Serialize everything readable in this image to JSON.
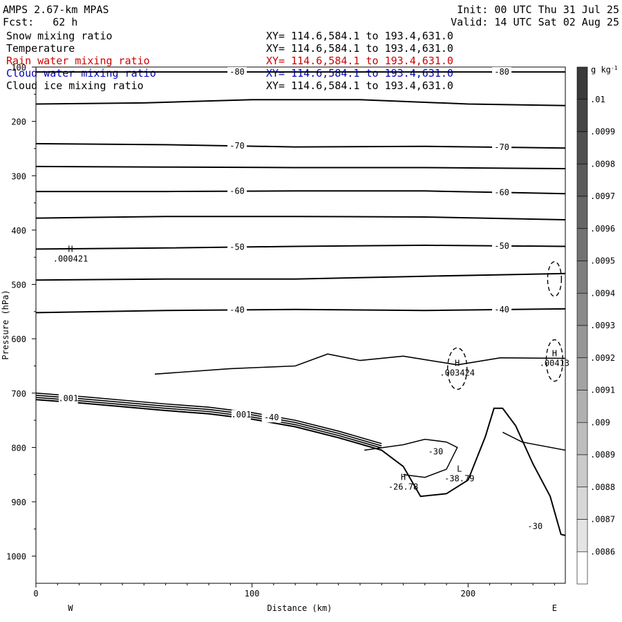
{
  "header": {
    "model": "AMPS 2.67-km MPAS",
    "fcst": "Fcst:   62 h",
    "init": "Init: 00 UTC Thu 31 Jul 25",
    "valid": "Valid: 14 UTC Sat 02 Aug 25"
  },
  "fields": [
    {
      "name": "Snow mixing ratio",
      "xy": "XY= 114.6,584.1 to 193.4,631.0",
      "color": "#000000"
    },
    {
      "name": "Temperature",
      "xy": "XY= 114.6,584.1 to 193.4,631.0",
      "color": "#000000"
    },
    {
      "name": "Rain water mixing ratio",
      "xy": "XY= 114.6,584.1 to 193.4,631.0",
      "color": "#d00000"
    },
    {
      "name": "Cloud water mixing ratio",
      "xy": "XY= 114.6,584.1 to 193.4,631.0",
      "color": "#0000c0"
    },
    {
      "name": "Cloud ice mixing ratio",
      "xy": "XY= 114.6,584.1 to 193.4,631.0",
      "color": "#000000"
    }
  ],
  "chart_data": {
    "type": "contour-cross-section",
    "xlabel": "Distance (km)",
    "ylabel": "Pressure (hPa)",
    "xlim": [
      0,
      245
    ],
    "ylim": [
      1050,
      100
    ],
    "x_ticks": [
      0,
      100,
      200
    ],
    "y_ticks": [
      100,
      200,
      300,
      400,
      500,
      600,
      700,
      800,
      900,
      1000
    ],
    "direction_left": "W",
    "direction_right": "E",
    "colorbar": {
      "unit": "g kg",
      "unit_sup": "-1",
      "labels": [
        ".01",
        ".0099",
        ".0098",
        ".0097",
        ".0096",
        ".0095",
        ".0094",
        ".0093",
        ".0092",
        ".0091",
        ".009",
        ".0089",
        ".0088",
        ".0087",
        ".0086"
      ],
      "colors": [
        "#3a3a3a",
        "#454545",
        "#505050",
        "#5b5b5b",
        "#666666",
        "#727272",
        "#7e7e7e",
        "#8a8a8a",
        "#969696",
        "#a3a3a3",
        "#b0b0b0",
        "#bdbdbd",
        "#cacaca",
        "#d7d7d7",
        "#e4e4e4",
        "#ffffff"
      ]
    },
    "isotherms": [
      {
        "value": -80,
        "label": "-80",
        "points": [
          [
            0,
            109
          ],
          [
            60,
            109
          ],
          [
            120,
            109
          ],
          [
            180,
            109
          ],
          [
            245,
            109
          ]
        ]
      },
      {
        "value": -75,
        "label": "",
        "points": [
          [
            0,
            168
          ],
          [
            50,
            166
          ],
          [
            100,
            160
          ],
          [
            150,
            160
          ],
          [
            200,
            168
          ],
          [
            245,
            171
          ]
        ]
      },
      {
        "value": -70,
        "label": "-70",
        "points": [
          [
            0,
            241
          ],
          [
            60,
            243
          ],
          [
            120,
            247
          ],
          [
            180,
            246
          ],
          [
            245,
            249
          ]
        ]
      },
      {
        "value": -65,
        "label": "",
        "points": [
          [
            0,
            283
          ],
          [
            60,
            284
          ],
          [
            120,
            285
          ],
          [
            180,
            285
          ],
          [
            245,
            287
          ]
        ]
      },
      {
        "value": -60,
        "label": "-60",
        "points": [
          [
            0,
            329
          ],
          [
            60,
            329
          ],
          [
            120,
            328
          ],
          [
            180,
            328
          ],
          [
            245,
            333
          ]
        ]
      },
      {
        "value": -55,
        "label": "",
        "points": [
          [
            0,
            378
          ],
          [
            60,
            375
          ],
          [
            120,
            375
          ],
          [
            180,
            376
          ],
          [
            245,
            381
          ]
        ]
      },
      {
        "value": -50,
        "label": "-50",
        "points": [
          [
            0,
            435
          ],
          [
            60,
            433
          ],
          [
            120,
            430
          ],
          [
            180,
            428
          ],
          [
            245,
            430
          ]
        ]
      },
      {
        "value": -45,
        "label": "",
        "points": [
          [
            0,
            492
          ],
          [
            60,
            490
          ],
          [
            120,
            490
          ],
          [
            180,
            485
          ],
          [
            245,
            480
          ]
        ]
      },
      {
        "value": -40,
        "label": "-40",
        "points": [
          [
            0,
            552
          ],
          [
            60,
            548
          ],
          [
            120,
            546
          ],
          [
            180,
            548
          ],
          [
            245,
            545
          ]
        ]
      }
    ],
    "point_labels": [
      {
        "type": "H",
        "value": ".000421",
        "x": 16,
        "y": 445
      },
      {
        "type": "H",
        "value": ".003424",
        "x": 195,
        "y": 655
      },
      {
        "type": "H",
        "value": ".00413",
        "x": 240,
        "y": 637
      },
      {
        "type": "H",
        "value": "-26.78",
        "x": 170,
        "y": 865
      },
      {
        "type": "L",
        "value": "-38.79",
        "x": 196,
        "y": 850
      }
    ],
    "contour_labels": [
      {
        "text": "-30",
        "x": 185,
        "y": 808
      },
      {
        "text": "-40",
        "x": 109,
        "y": 745
      },
      {
        "text": "-30",
        "x": 231,
        "y": 945
      },
      {
        "text": ".001",
        "x": 15,
        "y": 710
      },
      {
        "text": ".001",
        "x": 95,
        "y": 740
      }
    ]
  }
}
